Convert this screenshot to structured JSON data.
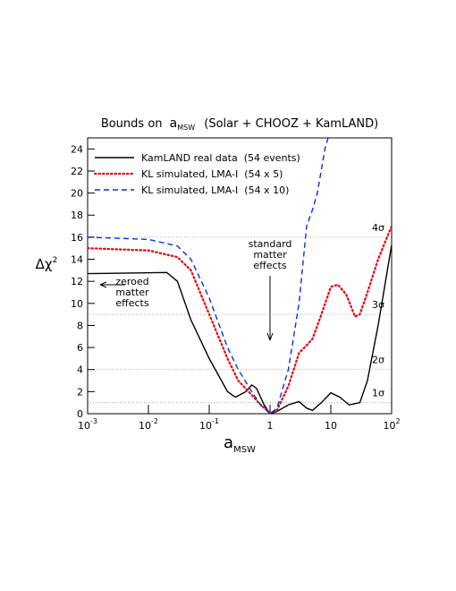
{
  "chart_data": {
    "type": "line",
    "title_prefix": "Bounds on",
    "title_symbol": "a",
    "title_subscript": "MSW",
    "title_suffix": "(Solar + CHOOZ + KamLAND)",
    "xlabel": "a",
    "xlabel_subscript": "MSW",
    "ylabel": "Δχ",
    "ylabel_superscript": "2",
    "log_x": true,
    "xlim": [
      0.001,
      100
    ],
    "ylim": [
      0,
      25
    ],
    "xticks": [
      {
        "value": 0.001,
        "label": "10",
        "exponent": "-3"
      },
      {
        "value": 0.01,
        "label": "10",
        "exponent": "-2"
      },
      {
        "value": 0.1,
        "label": "10",
        "exponent": "-1"
      },
      1,
      10,
      {
        "value": 100,
        "label": "10",
        "exponent": "2"
      }
    ],
    "yticks": [
      0,
      2,
      4,
      6,
      8,
      10,
      12,
      14,
      16,
      18,
      20,
      22,
      24
    ],
    "legend": "top-left",
    "sigma_lines": [
      {
        "value": 1,
        "label": "1σ"
      },
      {
        "value": 4,
        "label": "2σ"
      },
      {
        "value": 9,
        "label": "3σ"
      },
      {
        "value": 16,
        "label": "4σ"
      }
    ],
    "annotations": [
      {
        "lines": [
          "zeroed",
          "matter",
          "effects"
        ]
      },
      {
        "lines": [
          "standard",
          "matter",
          "effects"
        ]
      }
    ],
    "series": [
      {
        "name": "KamLAND real data  (54 events)",
        "color": "#000000",
        "style": "solid",
        "x": [
          0.001,
          0.005,
          0.02,
          0.03,
          0.05,
          0.1,
          0.2,
          0.27,
          0.4,
          0.5,
          0.6,
          0.8,
          1,
          1.3,
          2,
          3,
          4,
          5,
          7,
          10,
          14,
          20,
          30,
          40,
          60,
          100
        ],
        "values": [
          12.7,
          12.75,
          12.8,
          12,
          8.5,
          5,
          2,
          1.5,
          2,
          2.6,
          2.3,
          0.8,
          0,
          0.2,
          0.8,
          1.1,
          0.5,
          0.3,
          1,
          1.9,
          1.5,
          0.8,
          1,
          3,
          8,
          15.3
        ]
      },
      {
        "name": "KL simulated, LMA-I  (54 x 5)",
        "color": "#e8000b",
        "style": "dotted",
        "x": [
          0.001,
          0.01,
          0.03,
          0.05,
          0.1,
          0.2,
          0.3,
          0.5,
          0.7,
          1,
          1.3,
          2,
          3,
          4,
          5,
          7,
          10,
          13,
          18,
          25,
          30,
          40,
          60,
          100
        ],
        "values": [
          15,
          14.8,
          14.2,
          13,
          9,
          5,
          3,
          1.7,
          0.8,
          0.1,
          0.3,
          2.5,
          5.5,
          6.2,
          6.8,
          9,
          11.5,
          11.7,
          10.8,
          8.8,
          9,
          11,
          14,
          17
        ]
      },
      {
        "name": "KL simulated, LMA-I  (54 x 10)",
        "color": "#0030e8",
        "style": "dashed",
        "x": [
          0.001,
          0.01,
          0.03,
          0.05,
          0.1,
          0.2,
          0.3,
          0.5,
          0.7,
          1,
          1.3,
          2,
          3,
          4,
          5,
          6,
          8,
          9
        ],
        "values": [
          16,
          15.8,
          15.2,
          14,
          10.5,
          6,
          4,
          2,
          0.8,
          0,
          0.5,
          4,
          10,
          17,
          18.5,
          20,
          24,
          25
        ]
      }
    ]
  }
}
